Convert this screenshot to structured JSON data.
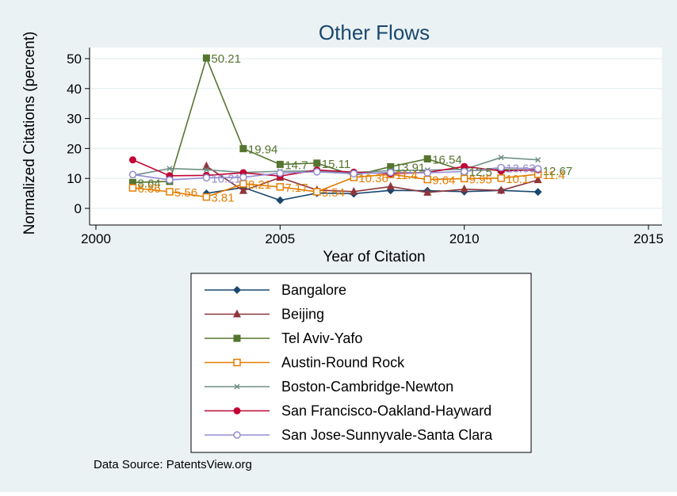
{
  "chart_data": {
    "type": "line",
    "title": "Other Flows",
    "xlabel": "Year of Citation",
    "ylabel": "Normalized Citations (percent)",
    "xlim": [
      2000,
      2015
    ],
    "ylim": [
      0,
      50
    ],
    "xticks": [
      2000,
      2005,
      2010,
      2015
    ],
    "yticks": [
      0,
      10,
      20,
      30,
      40,
      50
    ],
    "grid": true,
    "legend_position": "below",
    "source_note": "Data Source: PatentsView.org",
    "series": [
      {
        "name": "Bangalore",
        "color": "#1a476f",
        "marker": "diamond",
        "x": [
          2003,
          2004,
          2005,
          2006,
          2007,
          2008,
          2009,
          2010,
          2011,
          2012
        ],
        "y": [
          5.0,
          7.0,
          2.7,
          5.1,
          4.9,
          6.0,
          5.9,
          5.6,
          6.0,
          5.5
        ],
        "labels": []
      },
      {
        "name": "Beijing",
        "color": "#90353b",
        "marker": "triangle",
        "x": [
          2003,
          2004,
          2005,
          2006,
          2007,
          2008,
          2009,
          2010,
          2011,
          2012
        ],
        "y": [
          14.1,
          5.9,
          10.3,
          6.1,
          5.6,
          7.3,
          5.3,
          6.4,
          6.0,
          9.5
        ],
        "labels": []
      },
      {
        "name": "Tel Aviv-Yafo",
        "color": "#55752f",
        "marker": "square",
        "x": [
          2001,
          2002,
          2003,
          2004,
          2005,
          2006,
          2007,
          2008,
          2009,
          2010,
          2011,
          2012
        ],
        "y": [
          8.64,
          9.0,
          50.21,
          19.94,
          14.7,
          15.11,
          11.0,
          13.91,
          16.54,
          12.5,
          13.0,
          12.67
        ],
        "labels": [
          "8.64",
          "",
          "50.21",
          "19.94",
          "14.7",
          "15.11",
          "",
          "13.91",
          "16.54",
          "12.5",
          "",
          "12.67"
        ]
      },
      {
        "name": "Austin-Round Rock",
        "color": "#e37e00",
        "marker": "hollow-square",
        "x": [
          2001,
          2002,
          2003,
          2004,
          2005,
          2006,
          2007,
          2008,
          2009,
          2010,
          2011,
          2012
        ],
        "y": [
          6.86,
          5.56,
          3.81,
          8.21,
          7.17,
          5.54,
          10.36,
          11.4,
          9.64,
          9.95,
          10.1,
          11.4
        ],
        "labels": [
          "6.86",
          "5.56",
          "3.81",
          "8.21",
          "7.17",
          "5.54",
          "10.36",
          "11.4",
          "9.64",
          "9.95",
          "10.1",
          "11.4"
        ]
      },
      {
        "name": "Boston-Cambridge-Newton",
        "color": "#6e8e84",
        "marker": "x",
        "x": [
          2001,
          2002,
          2003,
          2004,
          2005,
          2006,
          2007,
          2008,
          2009,
          2010,
          2011,
          2012
        ],
        "y": [
          11.0,
          13.3,
          12.9,
          12.0,
          12.4,
          12.5,
          12.0,
          12.6,
          12.8,
          13.0,
          17.0,
          16.2
        ],
        "labels": []
      },
      {
        "name": "San Francisco-Oakland-Hayward",
        "color": "#c10534",
        "marker": "circle",
        "x": [
          2001,
          2002,
          2003,
          2004,
          2005,
          2006,
          2007,
          2008,
          2009,
          2010,
          2011,
          2012
        ],
        "y": [
          16.2,
          10.9,
          11.0,
          11.9,
          10.8,
          12.8,
          12.1,
          11.6,
          12.0,
          14.0,
          12.5,
          12.9
        ],
        "labels": []
      },
      {
        "name": "San Jose-Sunnyvale-Santa Clara",
        "color": "#938dd2",
        "marker": "hollow-circle",
        "x": [
          2001,
          2002,
          2003,
          2004,
          2005,
          2006,
          2007,
          2008,
          2009,
          2010,
          2011,
          2012
        ],
        "y": [
          11.3,
          9.5,
          10.21,
          10.4,
          11.8,
          12.2,
          11.6,
          12.0,
          11.9,
          12.3,
          13.63,
          13.2
        ],
        "labels": [
          "",
          "",
          "10.21",
          "",
          "",
          "",
          "",
          "",
          "",
          "",
          "13.63",
          ""
        ]
      }
    ]
  }
}
